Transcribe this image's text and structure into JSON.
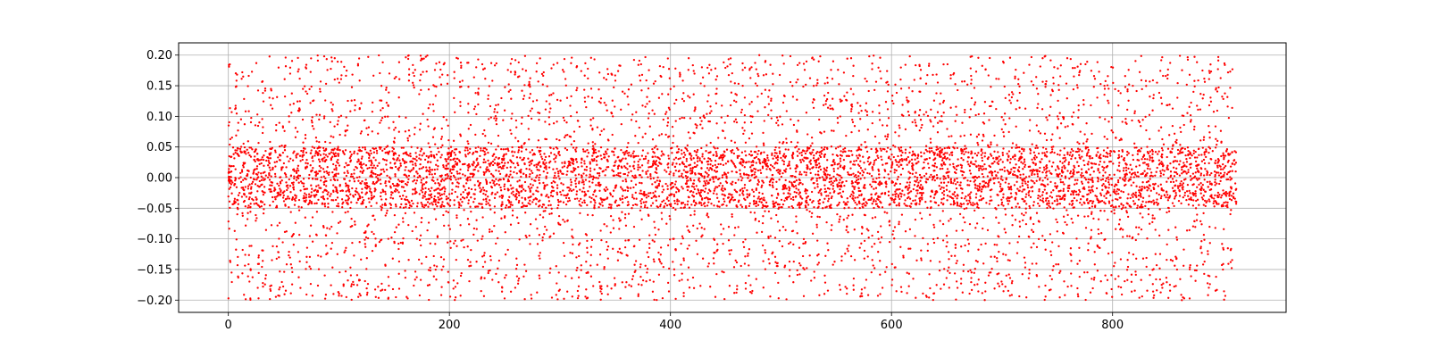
{
  "chart_data": {
    "type": "scatter",
    "title": "",
    "xlabel": "",
    "ylabel": "",
    "xlim": [
      -45,
      957
    ],
    "ylim": [
      -0.22,
      0.22
    ],
    "x_ticks": [
      0,
      200,
      400,
      600,
      800
    ],
    "x_tick_labels": [
      "0",
      "200",
      "400",
      "600",
      "800"
    ],
    "y_ticks": [
      -0.2,
      -0.15,
      -0.1,
      -0.05,
      0.0,
      0.05,
      0.1,
      0.15,
      0.2
    ],
    "y_tick_labels": [
      "−0.20",
      "−0.15",
      "−0.10",
      "−0.05",
      "0.00",
      "0.05",
      "0.10",
      "0.15",
      "0.20"
    ],
    "grid": true,
    "legend": "none",
    "series": [
      {
        "color": "#ff0000",
        "marker": "dot",
        "x_range": [
          0,
          912
        ],
        "y_range": [
          -0.2,
          0.2
        ],
        "dense_band": [
          -0.05,
          0.05
        ],
        "approx_column_spacing": 6.2
      }
    ]
  }
}
